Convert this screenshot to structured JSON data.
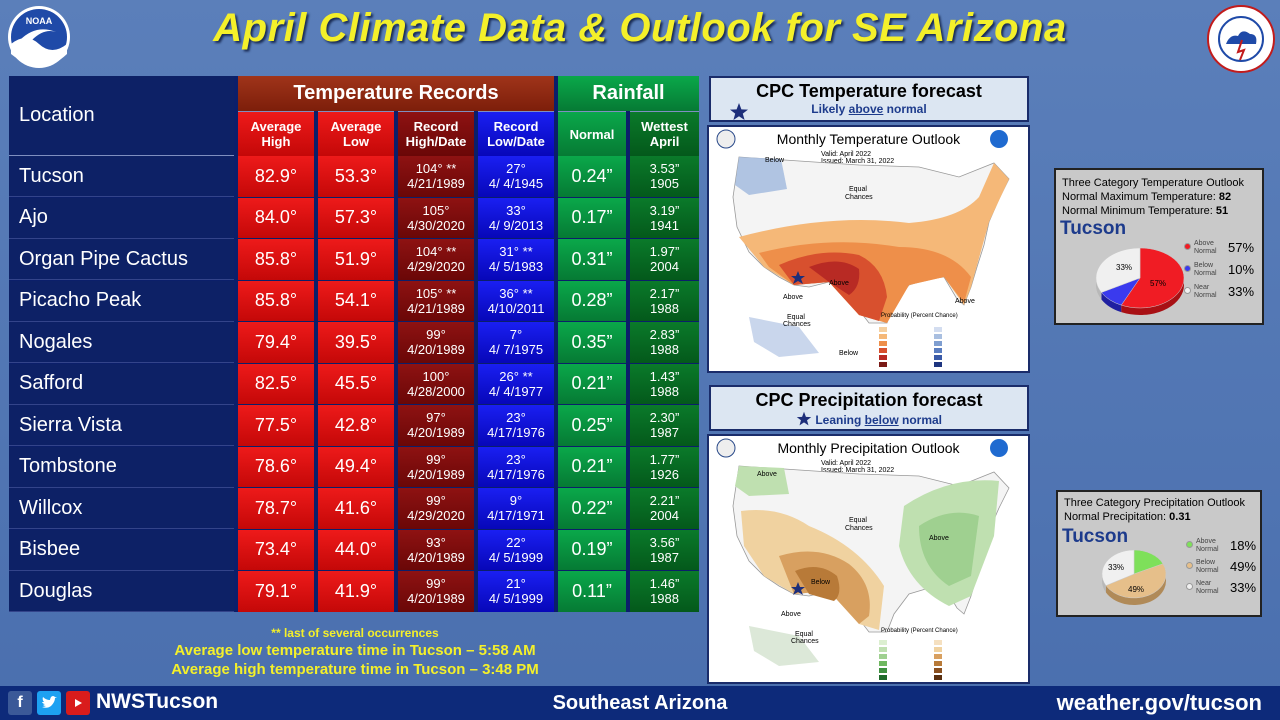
{
  "header": {
    "title": "April Climate Data & Outlook for SE Arizona"
  },
  "table": {
    "location_header": "Location",
    "group_temp": "Temperature Records",
    "group_rain": "Rainfall",
    "sub_avg_high": [
      "Average",
      "High"
    ],
    "sub_avg_low": [
      "Average",
      "Low"
    ],
    "sub_rec_high": [
      "Record",
      "High/Date"
    ],
    "sub_rec_low": [
      "Record",
      "Low/Date"
    ],
    "sub_normal": "Normal",
    "sub_wettest": [
      "Wettest",
      "April"
    ],
    "rows": [
      {
        "location": "Tucson",
        "avg_high": "82.9°",
        "avg_low": "53.3°",
        "rec_high": "104° **",
        "rec_high_date": "4/21/1989",
        "rec_low": "27°",
        "rec_low_date": "4/ 4/1945",
        "normal": "0.24”",
        "wettest": "3.53”",
        "wettest_year": "1905"
      },
      {
        "location": "Ajo",
        "avg_high": "84.0°",
        "avg_low": "57.3°",
        "rec_high": "105°",
        "rec_high_date": "4/30/2020",
        "rec_low": "33°",
        "rec_low_date": "4/ 9/2013",
        "normal": "0.17”",
        "wettest": "3.19”",
        "wettest_year": "1941"
      },
      {
        "location": "Organ Pipe Cactus",
        "avg_high": "85.8°",
        "avg_low": "51.9°",
        "rec_high": "104° **",
        "rec_high_date": "4/29/2020",
        "rec_low": "31° **",
        "rec_low_date": "4/ 5/1983",
        "normal": "0.31”",
        "wettest": "1.97”",
        "wettest_year": "2004"
      },
      {
        "location": "Picacho Peak",
        "avg_high": "85.8°",
        "avg_low": "54.1°",
        "rec_high": "105° **",
        "rec_high_date": "4/21/1989",
        "rec_low": "36° **",
        "rec_low_date": "4/10/2011",
        "normal": "0.28”",
        "wettest": "2.17”",
        "wettest_year": "1988"
      },
      {
        "location": "Nogales",
        "avg_high": "79.4°",
        "avg_low": "39.5°",
        "rec_high": "99°",
        "rec_high_date": "4/20/1989",
        "rec_low": "7°",
        "rec_low_date": "4/ 7/1975",
        "normal": "0.35”",
        "wettest": "2.83”",
        "wettest_year": "1988"
      },
      {
        "location": "Safford",
        "avg_high": "82.5°",
        "avg_low": "45.5°",
        "rec_high": "100°",
        "rec_high_date": "4/28/2000",
        "rec_low": "26° **",
        "rec_low_date": "4/ 4/1977",
        "normal": "0.21”",
        "wettest": "1.43”",
        "wettest_year": "1988"
      },
      {
        "location": "Sierra Vista",
        "avg_high": "77.5°",
        "avg_low": "42.8°",
        "rec_high": "97°",
        "rec_high_date": "4/20/1989",
        "rec_low": "23°",
        "rec_low_date": "4/17/1976",
        "normal": "0.25”",
        "wettest": "2.30”",
        "wettest_year": "1987"
      },
      {
        "location": "Tombstone",
        "avg_high": "78.6°",
        "avg_low": "49.4°",
        "rec_high": "99°",
        "rec_high_date": "4/20/1989",
        "rec_low": "23°",
        "rec_low_date": "4/17/1976",
        "normal": "0.21”",
        "wettest": "1.77”",
        "wettest_year": "1926"
      },
      {
        "location": "Willcox",
        "avg_high": "78.7°",
        "avg_low": "41.6°",
        "rec_high": "99°",
        "rec_high_date": "4/29/2020",
        "rec_low": "9°",
        "rec_low_date": "4/17/1971",
        "normal": "0.22”",
        "wettest": "2.21”",
        "wettest_year": "2004"
      },
      {
        "location": "Bisbee",
        "avg_high": "73.4°",
        "avg_low": "44.0°",
        "rec_high": "93°",
        "rec_high_date": "4/20/1989",
        "rec_low": "22°",
        "rec_low_date": "4/ 5/1999",
        "normal": "0.19”",
        "wettest": "3.56”",
        "wettest_year": "1987"
      },
      {
        "location": "Douglas",
        "avg_high": "79.1°",
        "avg_low": "41.9°",
        "rec_high": "99°",
        "rec_high_date": "4/20/1989",
        "rec_low": "21°",
        "rec_low_date": "4/ 5/1999",
        "normal": "0.11”",
        "wettest": "1.46”",
        "wettest_year": "1988"
      }
    ]
  },
  "footnotes": {
    "note": "** last of several occurrences",
    "low_time": "Average low temperature time in Tucson – 5:58 AM",
    "high_time": "Average high temperature time in Tucson – 3:48 PM"
  },
  "temp_forecast": {
    "title": "CPC Temperature forecast",
    "sub_pre": "Likely ",
    "sub_key": "above",
    "sub_post": " normal",
    "map_title": "Monthly Temperature Outlook",
    "valid": "Valid:  April 2022",
    "issued": "Issued:  March 31, 2022",
    "labels": {
      "below": "Below",
      "equal": "Equal\nChances",
      "above": "Above"
    },
    "legend_title": "Probability (Percent Chance)"
  },
  "precip_forecast": {
    "title": "CPC Precipitation forecast",
    "sub_pre": "Leaning ",
    "sub_key": "below",
    "sub_post": " normal",
    "map_title": "Monthly Precipitation Outlook",
    "valid": "Valid:  April 2022",
    "issued": "Issued:  March 31, 2022",
    "labels": {
      "below": "Below",
      "equal": "Equal\nChances",
      "above": "Above"
    },
    "legend_title": "Probability (Percent Chance)"
  },
  "temp_box": {
    "heading": "Three Category Temperature Outlook",
    "max_label": "Normal Maximum Temperature: ",
    "max_value": "82",
    "min_label": "Normal Minimum Temperature: ",
    "min_value": "51",
    "city": "Tucson",
    "pie_above_label": "57%",
    "pie_near_label": "33%",
    "legend": [
      {
        "name": "Above\nNormal",
        "pct": "57%",
        "color": "#f01c24"
      },
      {
        "name": "Below\nNormal",
        "pct": "10%",
        "color": "#3a3aee"
      },
      {
        "name": "Near\nNormal",
        "pct": "33%",
        "color": "#f0f0f0"
      }
    ],
    "values": {
      "above": 57,
      "below": 10,
      "near": 33
    }
  },
  "precip_box": {
    "heading": "Three Category Precipitation Outlook",
    "normal_label": "Normal Precipitation: ",
    "normal_value": "0.31",
    "city": "Tucson",
    "pie_below_label": "49%",
    "pie_near_label": "33%",
    "legend": [
      {
        "name": "Above\nNormal",
        "pct": "18%",
        "color": "#7ee05a"
      },
      {
        "name": "Below\nNormal",
        "pct": "49%",
        "color": "#e6bf8a"
      },
      {
        "name": "Near\nNormal",
        "pct": "33%",
        "color": "#f0f0f0"
      }
    ],
    "values": {
      "above": 18,
      "below": 49,
      "near": 33
    }
  },
  "bottom": {
    "handle": "NWSTucson",
    "center": "Southeast Arizona",
    "site": "weather.gov/tucson"
  },
  "colors": {
    "title": "#f4f02a",
    "temp_red": "#e61414",
    "record_dark": "#7a0b0b",
    "record_blue": "#0b0bd6",
    "rain_green": "#069140"
  }
}
